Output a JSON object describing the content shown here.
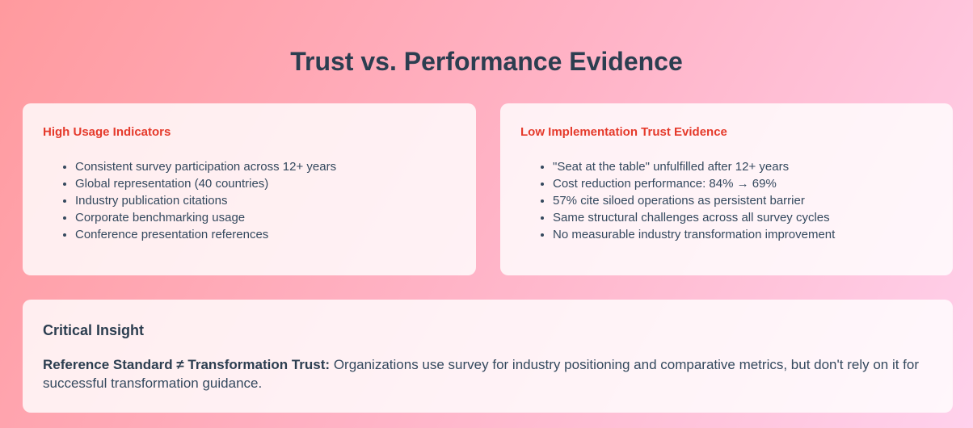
{
  "header": {
    "title": "Trust vs. Performance Evidence"
  },
  "cards": [
    {
      "heading": "High Usage Indicators",
      "items": [
        "Consistent survey participation across 12+ years",
        "Global representation (40 countries)",
        "Industry publication citations",
        "Corporate benchmarking usage",
        "Conference presentation references"
      ]
    },
    {
      "heading": "Low Implementation Trust Evidence",
      "items": [
        "\"Seat at the table\" unfulfilled after 12+ years",
        "Cost reduction performance: 84% → 69%",
        "57% cite siloed operations as persistent barrier",
        "Same structural challenges across all survey cycles",
        "No measurable industry transformation improvement"
      ]
    }
  ],
  "insight": {
    "heading": "Critical Insight",
    "lead": "Reference Standard ≠ Transformation Trust:",
    "text": "Organizations use survey for industry positioning and comparative metrics, but don't rely on it for successful transformation guidance."
  }
}
